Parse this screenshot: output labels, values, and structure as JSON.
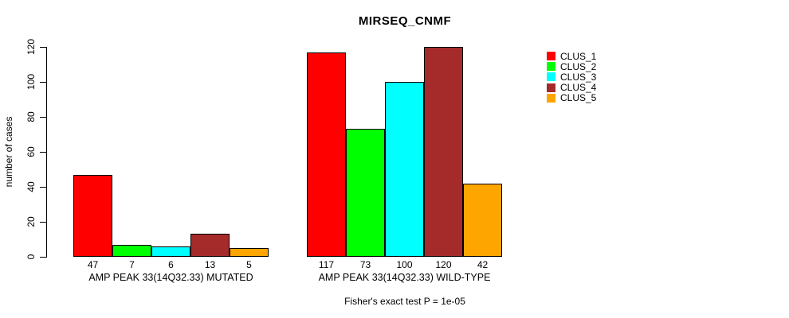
{
  "chart_data": {
    "type": "bar",
    "title": "MIRSEQ_CNMF",
    "ylabel": "number of cases",
    "xlabel": "",
    "ylim": [
      0,
      120
    ],
    "yticks": [
      0,
      20,
      40,
      60,
      80,
      100,
      120
    ],
    "grid": false,
    "legend_position": "right",
    "legend_labels": [
      "CLUS_1",
      "CLUS_2",
      "CLUS_3",
      "CLUS_4",
      "CLUS_5"
    ],
    "series_colors": [
      "#FF0000",
      "#00FF00",
      "#00FFFF",
      "#A52A2A",
      "#FFA500"
    ],
    "groups": [
      {
        "label": "AMP PEAK 33(14Q32.33) MUTATED",
        "values": [
          47,
          7,
          6,
          13,
          5
        ]
      },
      {
        "label": "AMP PEAK 33(14Q32.33) WILD-TYPE",
        "values": [
          117,
          73,
          100,
          120,
          42
        ]
      }
    ],
    "annotation": "Fisher's exact test P = 1e-05"
  }
}
